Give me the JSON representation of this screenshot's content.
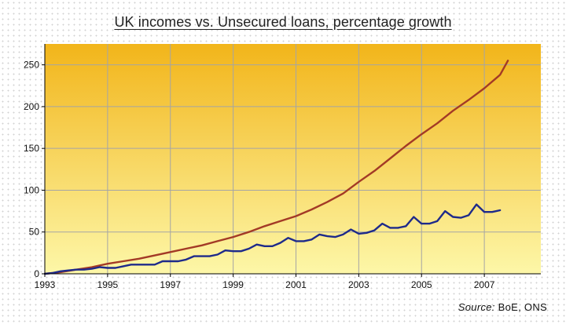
{
  "chart_data": {
    "type": "line",
    "title": "UK incomes vs. Unsecured loans, percentage growth",
    "source_label": "Source:",
    "source_value": "BoE, ONS",
    "xlabel": "",
    "ylabel": "",
    "xlim": [
      1993,
      2008.8
    ],
    "ylim": [
      0,
      275
    ],
    "x_ticks": [
      1993,
      1995,
      1997,
      1999,
      2001,
      2003,
      2005,
      2007
    ],
    "x_tick_labels": [
      "1993",
      "1995",
      "1997",
      "1999",
      "2001",
      "2003",
      "2005",
      "2007"
    ],
    "y_ticks": [
      0,
      50,
      100,
      150,
      200,
      250
    ],
    "y_tick_labels": [
      "0",
      "50",
      "100",
      "150",
      "200",
      "250"
    ],
    "grid": true,
    "legend": "none",
    "colors": {
      "plot_top": "#f2b51a",
      "plot_bottom": "#fdf7a8",
      "gridline": "#a5a5a5",
      "series_loans": "#a33a26",
      "series_incomes": "#1e2a8a"
    },
    "series": [
      {
        "key": "loans",
        "x": [
          1993.0,
          1993.5,
          1994.0,
          1994.5,
          1995.0,
          1995.5,
          1996.0,
          1996.5,
          1997.0,
          1997.5,
          1998.0,
          1998.5,
          1999.0,
          1999.5,
          2000.0,
          2000.5,
          2001.0,
          2001.5,
          2002.0,
          2002.5,
          2003.0,
          2003.5,
          2004.0,
          2004.5,
          2005.0,
          2005.5,
          2006.0,
          2006.5,
          2007.0,
          2007.5,
          2007.75
        ],
        "values": [
          0,
          2,
          5,
          8,
          12,
          15,
          18,
          22,
          26,
          30,
          34,
          39,
          44,
          50,
          57,
          63,
          69,
          77,
          86,
          96,
          110,
          123,
          138,
          153,
          167,
          180,
          195,
          208,
          222,
          238,
          255
        ]
      },
      {
        "key": "incomes",
        "x": [
          1993.0,
          1993.25,
          1993.5,
          1993.75,
          1994.0,
          1994.25,
          1994.5,
          1994.75,
          1995.0,
          1995.25,
          1995.5,
          1995.75,
          1996.0,
          1996.25,
          1996.5,
          1996.75,
          1997.0,
          1997.25,
          1997.5,
          1997.75,
          1998.0,
          1998.25,
          1998.5,
          1998.75,
          1999.0,
          1999.25,
          1999.5,
          1999.75,
          2000.0,
          2000.25,
          2000.5,
          2000.75,
          2001.0,
          2001.25,
          2001.5,
          2001.75,
          2002.0,
          2002.25,
          2002.5,
          2002.75,
          2003.0,
          2003.25,
          2003.5,
          2003.75,
          2004.0,
          2004.25,
          2004.5,
          2004.75,
          2005.0,
          2005.25,
          2005.5,
          2005.75,
          2006.0,
          2006.25,
          2006.5,
          2006.75,
          2007.0,
          2007.25,
          2007.5
        ],
        "values": [
          0,
          1,
          3,
          4,
          5,
          5,
          6,
          8,
          7,
          7,
          9,
          11,
          11,
          11,
          11,
          15,
          15,
          15,
          17,
          21,
          21,
          21,
          23,
          28,
          27,
          27,
          30,
          35,
          33,
          33,
          37,
          43,
          39,
          39,
          41,
          47,
          45,
          44,
          47,
          53,
          48,
          49,
          52,
          60,
          55,
          55,
          57,
          68,
          60,
          60,
          63,
          75,
          68,
          67,
          70,
          83,
          74,
          74,
          76
        ]
      }
    ]
  }
}
